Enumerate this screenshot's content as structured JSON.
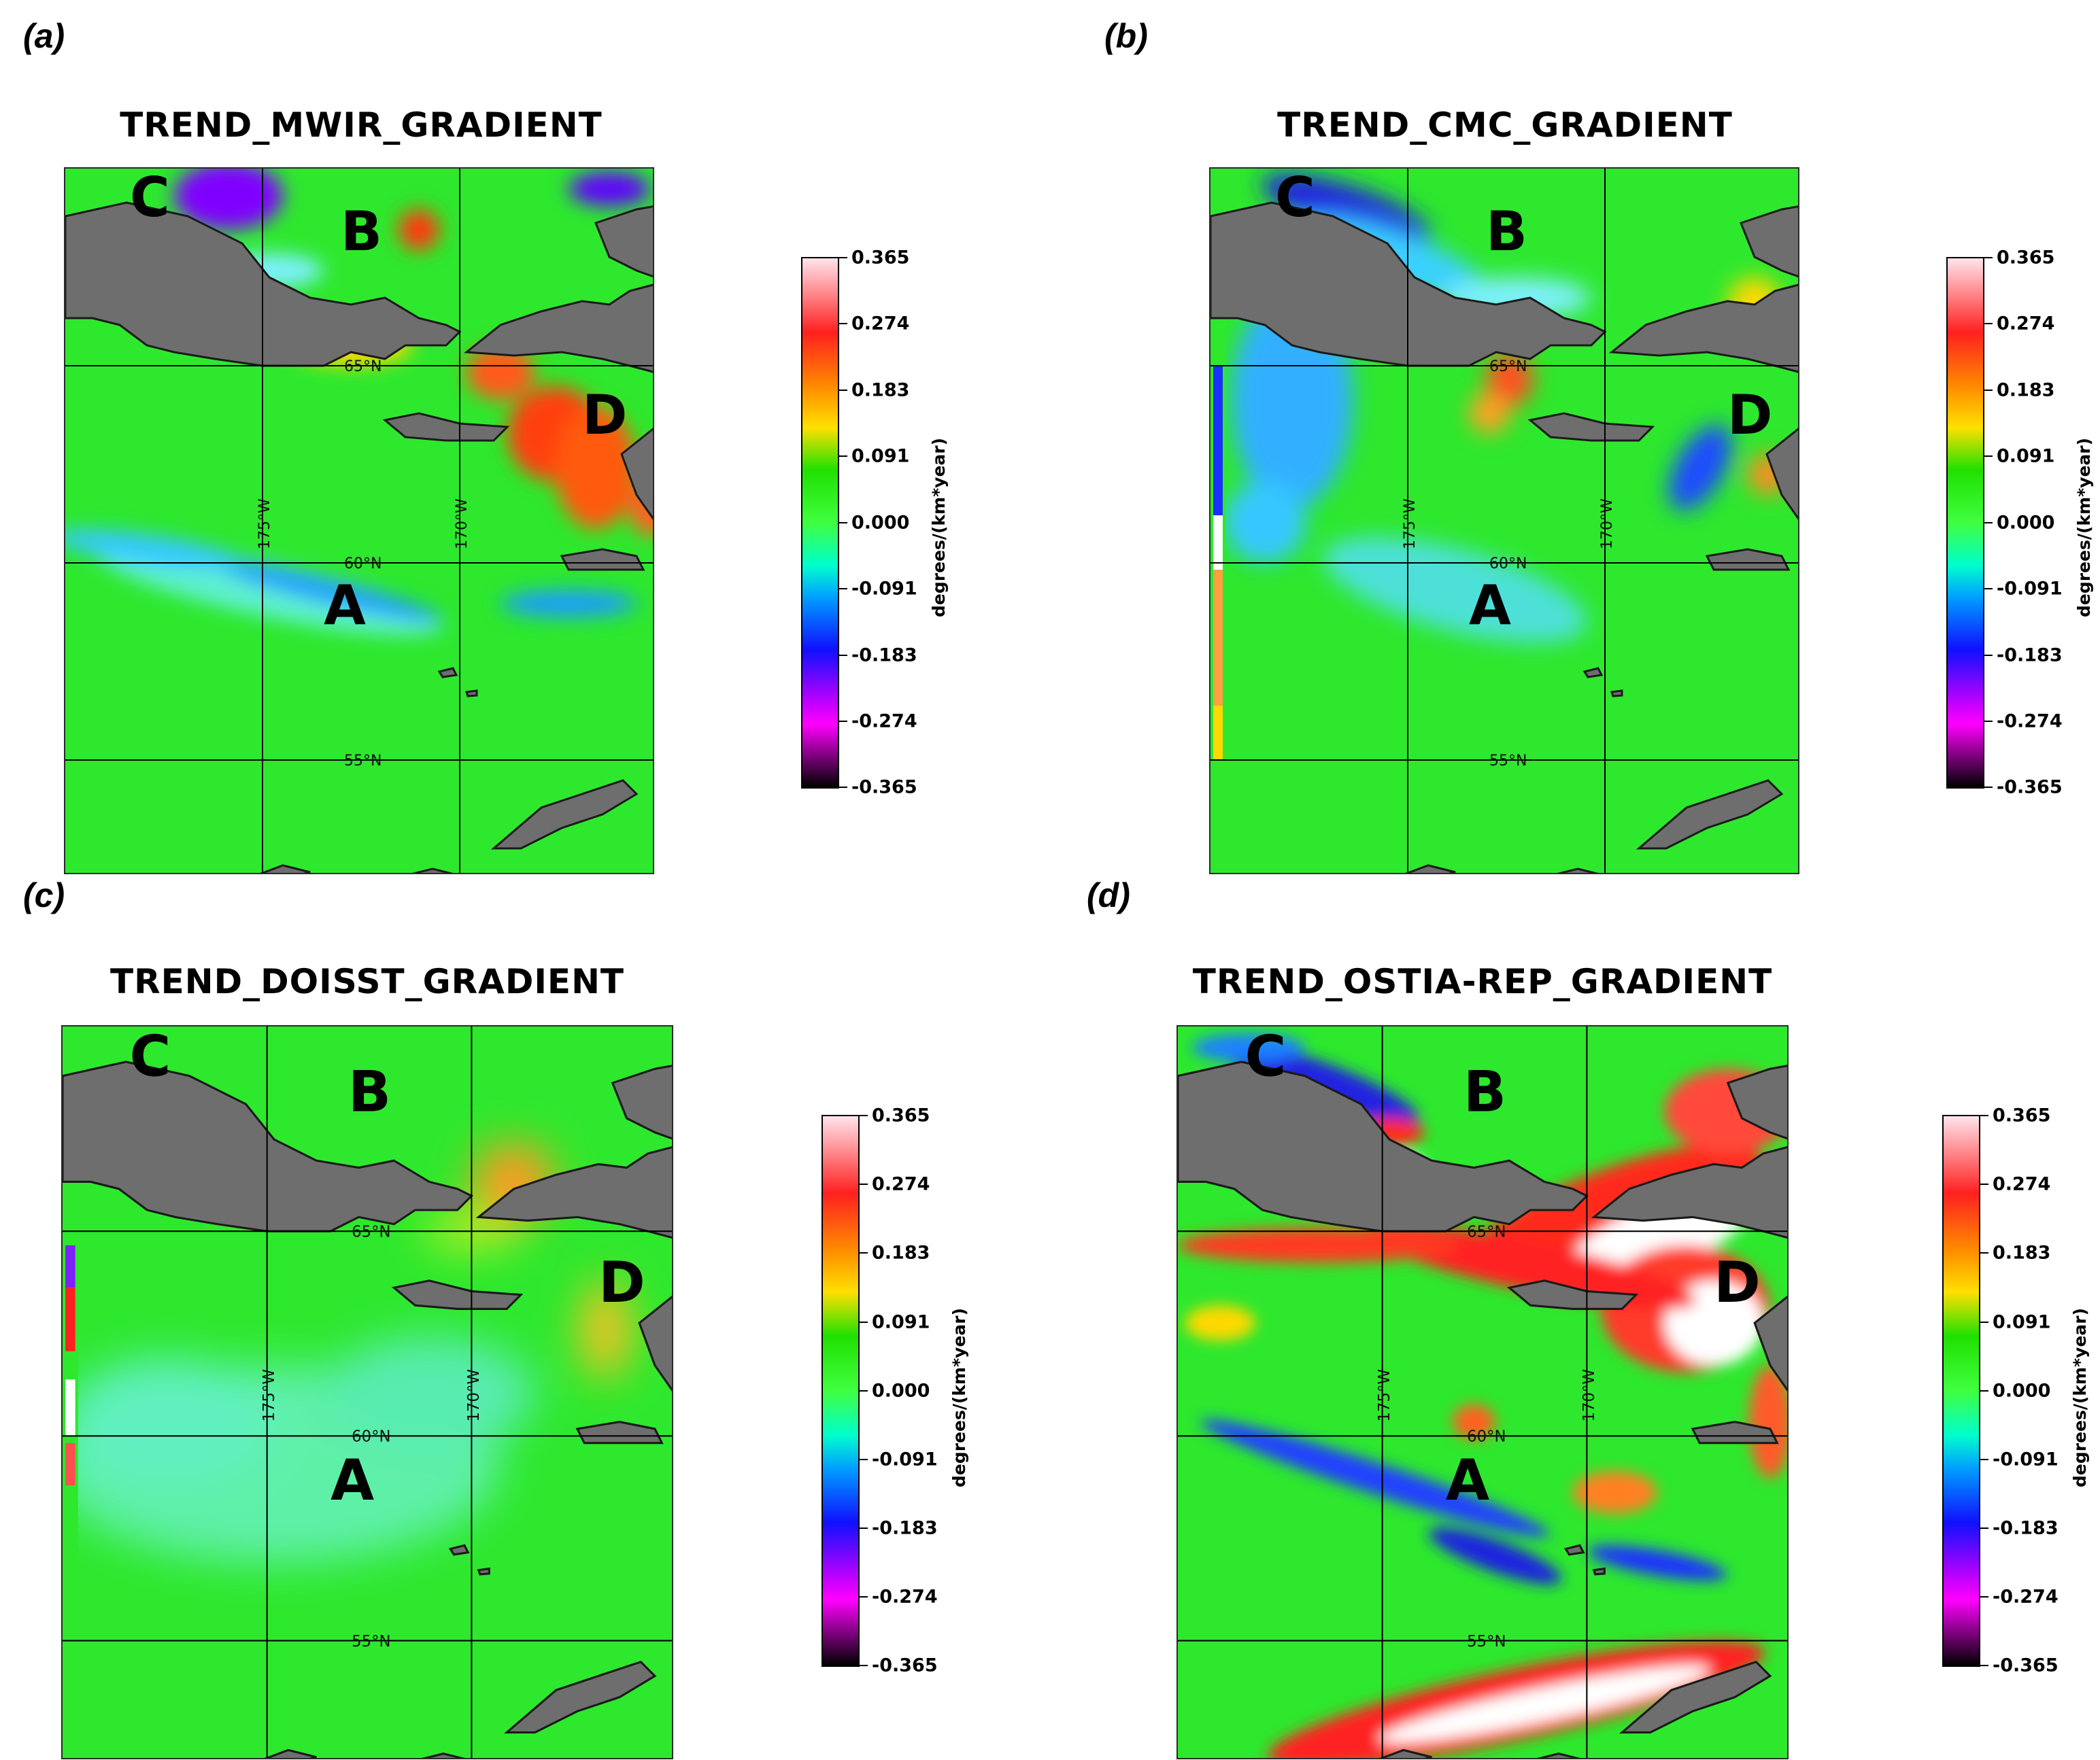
{
  "panels": [
    {
      "label": "(a)",
      "title": "TREND_MWIR_GRADIENT",
      "lat_labels": [
        "65°N",
        "60°N",
        "55°N"
      ],
      "lon_labels": [
        "175°W",
        "170°W"
      ],
      "regions": [
        "A",
        "B",
        "C",
        "D"
      ],
      "colorbar": {
        "ticks": [
          "0.365",
          "0.274",
          "0.183",
          "0.091",
          "0.000",
          "-0.091",
          "-0.183",
          "-0.274",
          "-0.365"
        ],
        "unit": "degrees/(km*year)"
      }
    },
    {
      "label": "(b)",
      "title": "TREND_CMC_GRADIENT",
      "lat_labels": [
        "65°N",
        "60°N",
        "55°N"
      ],
      "lon_labels": [
        "175°W",
        "170°W"
      ],
      "regions": [
        "A",
        "B",
        "C",
        "D"
      ],
      "colorbar": {
        "ticks": [
          "0.365",
          "0.274",
          "0.183",
          "0.091",
          "0.000",
          "-0.091",
          "-0.183",
          "-0.274",
          "-0.365"
        ],
        "unit": "degrees/(km*year)"
      }
    },
    {
      "label": "(c)",
      "title": "TREND_DOISST_GRADIENT",
      "lat_labels": [
        "65°N",
        "60°N",
        "55°N"
      ],
      "lon_labels": [
        "175°W",
        "170°W"
      ],
      "regions": [
        "A",
        "B",
        "C",
        "D"
      ],
      "colorbar": {
        "ticks": [
          "0.365",
          "0.274",
          "0.183",
          "0.091",
          "0.000",
          "-0.091",
          "-0.183",
          "-0.274",
          "-0.365"
        ],
        "unit": "degrees/(km*year)"
      }
    },
    {
      "label": "(d)",
      "title": "TREND_OSTIA-REP_GRADIENT",
      "lat_labels": [
        "65°N",
        "60°N",
        "55°N"
      ],
      "lon_labels": [
        "175°W",
        "170°W"
      ],
      "regions": [
        "A",
        "B",
        "C",
        "D"
      ],
      "colorbar": {
        "ticks": [
          "0.365",
          "0.274",
          "0.183",
          "0.091",
          "0.000",
          "-0.091",
          "-0.183",
          "-0.274",
          "-0.365"
        ],
        "unit": "degrees/(km*year)"
      }
    }
  ],
  "colors": {
    "ocean_base": "#2ee82e",
    "land": "#6e6e6e",
    "cool_anomaly": "#1a9cff",
    "strong_cool": "#2020e0",
    "warm_anomaly": "#ff2a1a",
    "hot_anomaly": "#ffffff",
    "grid": "#000000"
  }
}
